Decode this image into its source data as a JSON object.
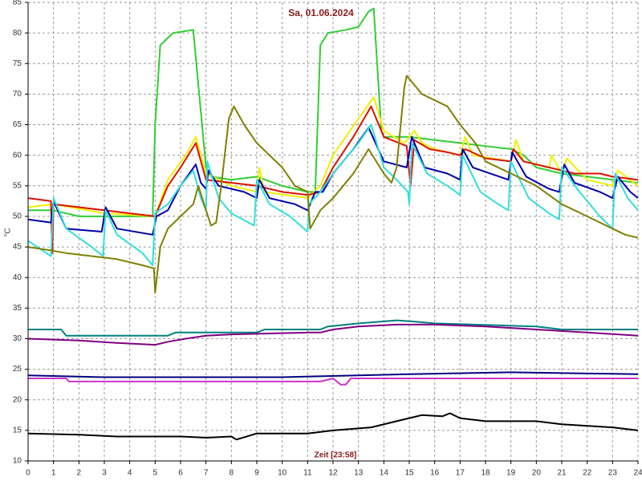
{
  "chart_data": {
    "type": "line",
    "title": "Sa, 01.06.2024",
    "x_label": "Zeit [23:58]",
    "y_label": "°C",
    "xlim": [
      0,
      24
    ],
    "xticks": [
      0,
      1,
      2,
      3,
      4,
      5,
      6,
      7,
      8,
      9,
      10,
      11,
      12,
      13,
      14,
      15,
      16,
      17,
      18,
      19,
      20,
      21,
      22,
      23,
      24
    ],
    "ylim": [
      10,
      85
    ],
    "yticks": [
      10,
      15,
      20,
      25,
      30,
      35,
      40,
      45,
      50,
      55,
      60,
      65,
      70,
      75,
      80,
      85
    ],
    "grid": true,
    "series": [
      {
        "color": "#33cc33",
        "x": [
          0,
          1,
          2,
          4.9,
          5,
          5.2,
          5.7,
          6.5,
          7.0,
          7.2,
          8,
          9,
          10,
          11,
          11.3,
          11.5,
          11.8,
          12.5,
          13,
          13.4,
          13.6,
          13.9,
          14,
          15,
          16,
          17,
          18,
          19,
          19.5,
          20,
          21,
          22,
          23,
          24
        ],
        "values": [
          51,
          51,
          50,
          50,
          65,
          78,
          80,
          80.5,
          58,
          56.5,
          56,
          56.5,
          55,
          54,
          54,
          78,
          80,
          80.5,
          81,
          83.5,
          84,
          64,
          63,
          63,
          62.5,
          62,
          61.5,
          61,
          60,
          58,
          57,
          56.5,
          56,
          55.5
        ]
      },
      {
        "color": "#f0f000",
        "x": [
          0,
          1,
          3,
          5,
          5.5,
          6.2,
          6.6,
          7.0,
          7.5,
          8,
          9,
          9.1,
          9.3,
          11,
          11.5,
          12,
          13,
          13.6,
          14,
          14.8,
          15.2,
          15.5,
          16,
          17,
          17.2,
          17.5,
          19,
          19.2,
          19.5,
          20.5,
          20.6,
          21,
          21.2,
          22,
          23,
          23.2,
          24
        ],
        "values": [
          51.5,
          52,
          50.5,
          50,
          56,
          60,
          63,
          57,
          56,
          55,
          54,
          58,
          54,
          53,
          55,
          60,
          66,
          69.5,
          64,
          62,
          64,
          62,
          61,
          60,
          63,
          60,
          59,
          62.5,
          59,
          58,
          60,
          57,
          59.5,
          56,
          55,
          57.5,
          55
        ]
      },
      {
        "color": "#dd1100",
        "x": [
          0,
          0.9,
          0.95,
          1.0,
          2,
          3,
          4,
          5,
          5.5,
          6,
          6.6,
          7,
          8,
          9,
          10,
          11,
          11.5,
          12,
          12.8,
          13.5,
          14,
          14.9,
          15.05,
          15.2,
          15.8,
          16.5,
          17,
          17.2,
          18,
          19,
          19.1,
          19.5,
          20.5,
          21.5,
          22.5,
          23,
          24
        ],
        "values": [
          53,
          52.5,
          44,
          52,
          51.5,
          51,
          50.5,
          50,
          55,
          58,
          62,
          56,
          55.5,
          55,
          54,
          53.5,
          54,
          58,
          63,
          68,
          63,
          61.5,
          55,
          62.5,
          61,
          60.5,
          60,
          61,
          59.5,
          59,
          61,
          59,
          58,
          57,
          57,
          56.5,
          56
        ]
      },
      {
        "color": "#0000aa",
        "x": [
          0,
          0.9,
          1.0,
          1.5,
          2.9,
          3.05,
          3.5,
          4.9,
          5.05,
          5.5,
          6,
          6.6,
          6.8,
          7.0,
          7.1,
          7.5,
          8.5,
          9.0,
          9.1,
          9.5,
          10.5,
          11.0,
          11.3,
          11.6,
          12,
          12.8,
          13.4,
          14,
          14.9,
          15.1,
          15.6,
          16.5,
          17,
          17.1,
          17.5,
          18.9,
          19.05,
          19.6,
          20.5,
          20.9,
          21.1,
          21.5,
          22.5,
          23,
          23.2,
          23.7,
          24
        ],
        "values": [
          49.5,
          49,
          52.5,
          48,
          47.5,
          51.5,
          48,
          47,
          50,
          51,
          55,
          58.5,
          55.5,
          54.5,
          57.5,
          55,
          54,
          53,
          56,
          53,
          52,
          51,
          54,
          54,
          57,
          61,
          64.5,
          59,
          58,
          63,
          58,
          57,
          56,
          61,
          58,
          56,
          60.5,
          56.5,
          54.5,
          54,
          58.5,
          55.5,
          54,
          53,
          56.5,
          54,
          53
        ]
      },
      {
        "color": "#33dddd",
        "x": [
          0,
          0.9,
          1.0,
          1.5,
          2.5,
          2.95,
          3.05,
          3.5,
          4.5,
          4.9,
          5.0,
          5.5,
          6,
          6.5,
          6.8,
          7.0,
          7.05,
          7.5,
          8,
          8.9,
          9.0,
          9.5,
          10.3,
          11.0,
          11.05,
          11.5,
          12,
          13,
          13.5,
          14,
          14.5,
          14.95,
          15.0,
          15.1,
          15.7,
          16.5,
          17.0,
          17.1,
          17.8,
          18.5,
          18.9,
          19.0,
          19.7,
          20.5,
          20.9,
          21.0,
          21.7,
          22.5,
          23,
          23.1,
          23.6,
          24
        ],
        "values": [
          46,
          43.5,
          53,
          48,
          45,
          43.5,
          51,
          47,
          44,
          42,
          50.5,
          52,
          55,
          57.5,
          53,
          51,
          59,
          53,
          50.5,
          48.5,
          56,
          52,
          50,
          47.5,
          52,
          54,
          57,
          62,
          65,
          58,
          56,
          54,
          52,
          62,
          57,
          55,
          53.5,
          60,
          54,
          52,
          51,
          59,
          53,
          50.5,
          49.5,
          58,
          54,
          50,
          48,
          57,
          53,
          51
        ]
      },
      {
        "color": "#808000",
        "x": [
          0,
          0.8,
          1.5,
          2.5,
          3.5,
          4.5,
          4.95,
          5.0,
          5.2,
          5.5,
          6,
          6.5,
          6.7,
          7,
          7.2,
          7.4,
          7.6,
          7.9,
          8.1,
          8.5,
          9,
          9.5,
          10,
          10.5,
          11,
          11.1,
          11.5,
          12,
          12.8,
          13.4,
          14,
          14.3,
          14.5,
          14.8,
          14.9,
          15.5,
          16.5,
          17,
          17.6,
          18,
          19,
          20,
          21,
          22,
          23,
          23.5,
          24
        ],
        "values": [
          45,
          44.5,
          44,
          43.5,
          43,
          42,
          41.5,
          37.5,
          45,
          48,
          50,
          52,
          55,
          51,
          48.5,
          49,
          55,
          66,
          68,
          65,
          62,
          60,
          58,
          55,
          54,
          48,
          51,
          53,
          57,
          61,
          57,
          55.5,
          58,
          71,
          73,
          70,
          68,
          65,
          62,
          59,
          57,
          55,
          52,
          50,
          48,
          47,
          46.5
        ]
      },
      {
        "color": "#008080",
        "x": [
          0,
          1.3,
          1.5,
          5.5,
          5.8,
          9,
          9.3,
          11.5,
          11.8,
          13,
          14.5,
          15.2,
          16,
          20,
          21,
          24
        ],
        "values": [
          31.5,
          31.5,
          30.5,
          30.5,
          31,
          31,
          31.5,
          31.5,
          32,
          32.5,
          33,
          32.8,
          32.5,
          32,
          31.5,
          31.5
        ]
      },
      {
        "color": "#800080",
        "x": [
          0,
          2,
          3.5,
          5,
          5.5,
          6.2,
          7,
          8,
          11,
          11.5,
          12,
          13,
          14.5,
          16,
          18,
          20,
          22,
          24
        ],
        "values": [
          30,
          29.7,
          29.3,
          29,
          29.5,
          30,
          30.5,
          30.7,
          31,
          31,
          31.5,
          32,
          32.3,
          32.3,
          32,
          31.5,
          31,
          30.5
        ]
      },
      {
        "color": "#cc33cc",
        "x": [
          0,
          1.5,
          1.6,
          11.5,
          12,
          12.3,
          12.5,
          12.7,
          24
        ],
        "values": [
          23.5,
          23.5,
          23,
          23,
          23.5,
          22.5,
          22.5,
          23.5,
          23.5
        ]
      },
      {
        "color": "#000080",
        "x": [
          0,
          3,
          10,
          13,
          15,
          19,
          22,
          24
        ],
        "values": [
          24,
          23.7,
          23.7,
          24,
          24.2,
          24.5,
          24.3,
          24.2
        ]
      },
      {
        "color": "#000000",
        "x": [
          0,
          2,
          3.5,
          6,
          7,
          8,
          8.2,
          9,
          11,
          12,
          13.5,
          14.5,
          15.5,
          16.3,
          16.6,
          17,
          18,
          20,
          21,
          23,
          24
        ],
        "values": [
          14.5,
          14.3,
          14,
          14,
          13.8,
          14,
          13.5,
          14.5,
          14.5,
          15,
          15.5,
          16.5,
          17.5,
          17.3,
          17.8,
          17,
          16.5,
          16.5,
          16,
          15.5,
          15
        ]
      }
    ]
  }
}
